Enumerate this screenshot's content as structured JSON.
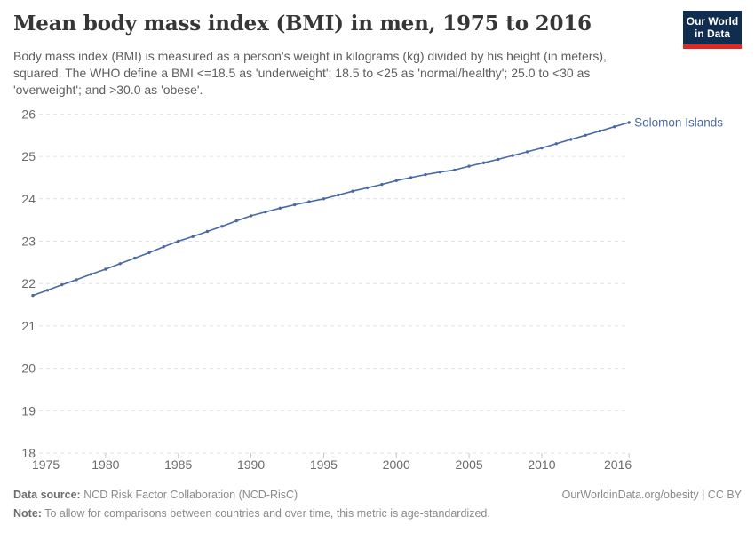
{
  "header": {
    "title": "Mean body mass index (BMI) in men, 1975 to 2016",
    "subtitle_lines": [
      "Body mass index (BMI) is measured as a person's weight in kilograms (kg) divided by his height (in meters),",
      "squared. The WHO define a BMI <=18.5 as 'underweight'; 18.5 to <25 as 'normal/healthy'; 25.0 to <30 as",
      "'overweight'; and >30.0 as 'obese'."
    ],
    "logo": {
      "line1": "Our World",
      "line2": "in Data"
    }
  },
  "chart_data": {
    "type": "line",
    "title": "Mean body mass index (BMI) in men, 1975 to 2016",
    "xlabel": "",
    "ylabel": "",
    "xlim": [
      1975,
      2016
    ],
    "ylim": [
      18,
      26
    ],
    "grid": "horizontal-dashed",
    "legend_position": "end-of-line-label",
    "x_ticks": [
      1975,
      1980,
      1985,
      1990,
      1995,
      2000,
      2005,
      2010,
      2016
    ],
    "y_ticks": [
      18,
      19,
      20,
      21,
      22,
      23,
      24,
      25,
      26
    ],
    "series": [
      {
        "name": "Solomon Islands",
        "color": "#4a69a3",
        "x": [
          1975,
          1976,
          1977,
          1978,
          1979,
          1980,
          1981,
          1982,
          1983,
          1984,
          1985,
          1986,
          1987,
          1988,
          1989,
          1990,
          1991,
          1992,
          1993,
          1994,
          1995,
          1996,
          1997,
          1998,
          1999,
          2000,
          2001,
          2002,
          2003,
          2004,
          2005,
          2006,
          2007,
          2008,
          2009,
          2010,
          2011,
          2012,
          2013,
          2014,
          2015,
          2016
        ],
        "values": [
          21.72,
          21.84,
          21.97,
          22.09,
          22.22,
          22.34,
          22.47,
          22.6,
          22.73,
          22.87,
          23.0,
          23.11,
          23.23,
          23.35,
          23.48,
          23.6,
          23.69,
          23.78,
          23.86,
          23.93,
          24.0,
          24.09,
          24.18,
          24.26,
          24.34,
          24.43,
          24.5,
          24.57,
          24.63,
          24.68,
          24.77,
          24.85,
          24.93,
          25.02,
          25.11,
          25.2,
          25.3,
          25.4,
          25.5,
          25.6,
          25.7,
          25.8
        ]
      }
    ]
  },
  "footer": {
    "source_label": "Data source:",
    "source_text": " NCD Risk Factor Collaboration (NCD-RisC)",
    "credit": "OurWorldinData.org/obesity | CC BY",
    "note_label": "Note:",
    "note_text": " To allow for comparisons between countries and over time, this metric is age-standardized."
  },
  "colors": {
    "accent": "#4a69a3",
    "logo_navy": "#102d50",
    "logo_red": "#dc2a22",
    "grid": "#e1e1e1",
    "axis_text": "#6b6b6b",
    "title_text": "#363636",
    "subtitle_text": "#5e5e5e",
    "footer_text": "#8a8a8a",
    "footer_label": "#6e6e6e"
  }
}
